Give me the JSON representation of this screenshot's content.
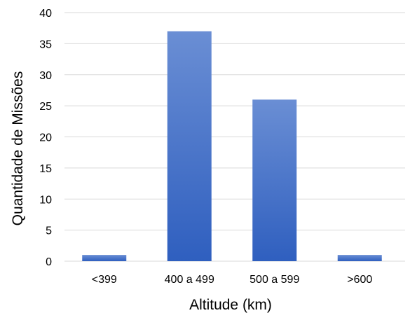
{
  "chart_data": {
    "type": "bar",
    "title": "",
    "xlabel": "Altitude (km)",
    "ylabel": "Quantidade de Missões",
    "categories": [
      "<399",
      "400 a 499",
      "500 a 599",
      ">600"
    ],
    "values": [
      1,
      37,
      26,
      1
    ],
    "ylim": [
      0,
      40
    ],
    "yticks": [
      0,
      5,
      10,
      15,
      20,
      25,
      30,
      35,
      40
    ],
    "grid": true,
    "legend": "none",
    "colors": {
      "bar_top": "#6a8ed4",
      "bar_bottom": "#2f5fbf",
      "grid": "#d9d9d9"
    }
  }
}
